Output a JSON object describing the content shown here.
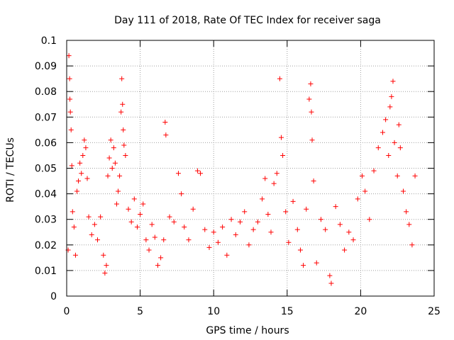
{
  "chart_data": {
    "type": "scatter",
    "title": "Day 111 of 2018, Rate Of TEC Index for receiver saga",
    "xlabel": "GPS time / hours",
    "ylabel": "ROTI / TECUs",
    "xlim": [
      0,
      25
    ],
    "ylim": [
      0,
      0.1
    ],
    "xticks": [
      "0",
      "5",
      "10",
      "15",
      "20",
      "25"
    ],
    "yticks": [
      "0",
      "0.01",
      "0.02",
      "0.03",
      "0.04",
      "0.05",
      "0.06",
      "0.07",
      "0.08",
      "0.09",
      "0.1"
    ],
    "grid": true,
    "marker": "+",
    "color": "#ff0000",
    "series": [
      {
        "points": [
          [
            0.1,
            0.018
          ],
          [
            0.15,
            0.094
          ],
          [
            0.2,
            0.085
          ],
          [
            0.22,
            0.077
          ],
          [
            0.25,
            0.072
          ],
          [
            0.3,
            0.065
          ],
          [
            0.35,
            0.051
          ],
          [
            0.4,
            0.033
          ],
          [
            0.5,
            0.027
          ],
          [
            0.6,
            0.016
          ],
          [
            0.7,
            0.041
          ],
          [
            0.8,
            0.045
          ],
          [
            0.9,
            0.052
          ],
          [
            1.0,
            0.048
          ],
          [
            1.1,
            0.055
          ],
          [
            1.2,
            0.061
          ],
          [
            1.3,
            0.058
          ],
          [
            1.4,
            0.046
          ],
          [
            1.5,
            0.031
          ],
          [
            1.7,
            0.024
          ],
          [
            1.9,
            0.028
          ],
          [
            2.1,
            0.022
          ],
          [
            2.3,
            0.031
          ],
          [
            2.5,
            0.016
          ],
          [
            2.6,
            0.009
          ],
          [
            2.7,
            0.012
          ],
          [
            2.8,
            0.047
          ],
          [
            2.9,
            0.054
          ],
          [
            3.0,
            0.061
          ],
          [
            3.1,
            0.05
          ],
          [
            3.2,
            0.058
          ],
          [
            3.3,
            0.052
          ],
          [
            3.4,
            0.036
          ],
          [
            3.5,
            0.041
          ],
          [
            3.6,
            0.047
          ],
          [
            3.7,
            0.072
          ],
          [
            3.75,
            0.085
          ],
          [
            3.8,
            0.075
          ],
          [
            3.85,
            0.065
          ],
          [
            3.9,
            0.059
          ],
          [
            4.0,
            0.055
          ],
          [
            4.2,
            0.034
          ],
          [
            4.4,
            0.029
          ],
          [
            4.6,
            0.038
          ],
          [
            4.8,
            0.027
          ],
          [
            5.0,
            0.032
          ],
          [
            5.2,
            0.036
          ],
          [
            5.4,
            0.022
          ],
          [
            5.6,
            0.018
          ],
          [
            5.8,
            0.028
          ],
          [
            6.0,
            0.023
          ],
          [
            6.2,
            0.012
          ],
          [
            6.4,
            0.015
          ],
          [
            6.6,
            0.022
          ],
          [
            6.7,
            0.068
          ],
          [
            6.75,
            0.063
          ],
          [
            7.0,
            0.031
          ],
          [
            7.3,
            0.029
          ],
          [
            7.6,
            0.048
          ],
          [
            7.8,
            0.04
          ],
          [
            8.0,
            0.027
          ],
          [
            8.3,
            0.022
          ],
          [
            8.6,
            0.034
          ],
          [
            8.9,
            0.049
          ],
          [
            9.1,
            0.048
          ],
          [
            9.4,
            0.026
          ],
          [
            9.7,
            0.019
          ],
          [
            10.0,
            0.025
          ],
          [
            10.3,
            0.021
          ],
          [
            10.6,
            0.027
          ],
          [
            10.9,
            0.016
          ],
          [
            11.2,
            0.03
          ],
          [
            11.5,
            0.024
          ],
          [
            11.8,
            0.029
          ],
          [
            12.1,
            0.033
          ],
          [
            12.4,
            0.02
          ],
          [
            12.7,
            0.026
          ],
          [
            13.0,
            0.029
          ],
          [
            13.3,
            0.038
          ],
          [
            13.5,
            0.046
          ],
          [
            13.7,
            0.032
          ],
          [
            13.9,
            0.025
          ],
          [
            14.1,
            0.044
          ],
          [
            14.3,
            0.048
          ],
          [
            14.5,
            0.085
          ],
          [
            14.6,
            0.062
          ],
          [
            14.7,
            0.055
          ],
          [
            14.9,
            0.033
          ],
          [
            15.1,
            0.021
          ],
          [
            15.4,
            0.037
          ],
          [
            15.7,
            0.026
          ],
          [
            15.9,
            0.018
          ],
          [
            16.1,
            0.012
          ],
          [
            16.3,
            0.034
          ],
          [
            16.5,
            0.077
          ],
          [
            16.6,
            0.083
          ],
          [
            16.65,
            0.072
          ],
          [
            16.7,
            0.061
          ],
          [
            16.8,
            0.045
          ],
          [
            17.0,
            0.013
          ],
          [
            17.3,
            0.03
          ],
          [
            17.6,
            0.026
          ],
          [
            17.9,
            0.008
          ],
          [
            18.0,
            0.005
          ],
          [
            18.3,
            0.035
          ],
          [
            18.6,
            0.028
          ],
          [
            18.9,
            0.018
          ],
          [
            19.2,
            0.025
          ],
          [
            19.5,
            0.022
          ],
          [
            19.8,
            0.038
          ],
          [
            20.1,
            0.047
          ],
          [
            20.3,
            0.041
          ],
          [
            20.6,
            0.03
          ],
          [
            20.9,
            0.049
          ],
          [
            21.2,
            0.058
          ],
          [
            21.5,
            0.064
          ],
          [
            21.7,
            0.069
          ],
          [
            21.9,
            0.055
          ],
          [
            22.0,
            0.074
          ],
          [
            22.1,
            0.078
          ],
          [
            22.2,
            0.084
          ],
          [
            22.3,
            0.06
          ],
          [
            22.5,
            0.047
          ],
          [
            22.6,
            0.067
          ],
          [
            22.7,
            0.058
          ],
          [
            22.9,
            0.041
          ],
          [
            23.1,
            0.033
          ],
          [
            23.3,
            0.028
          ],
          [
            23.5,
            0.02
          ],
          [
            23.7,
            0.047
          ]
        ]
      }
    ]
  }
}
